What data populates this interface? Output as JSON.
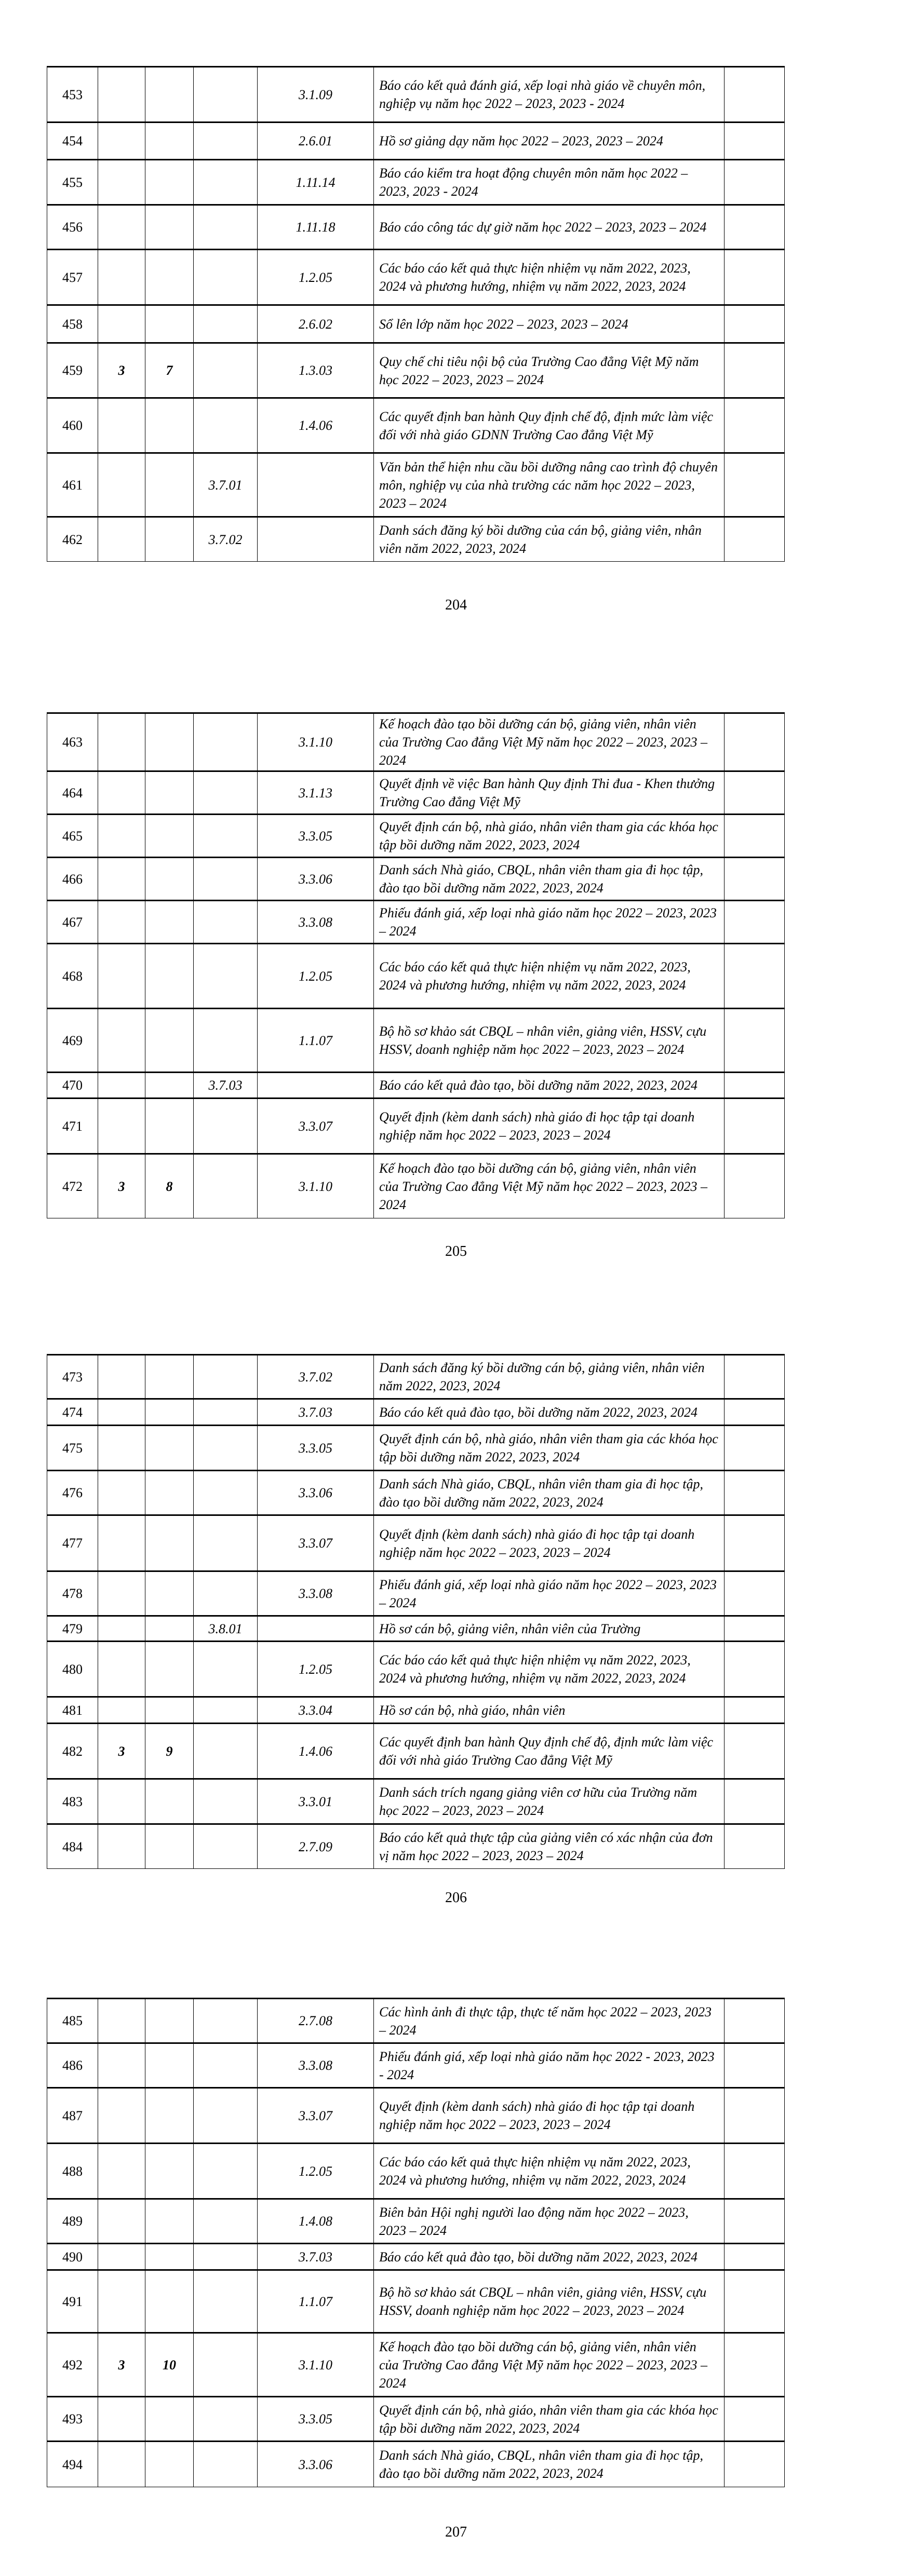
{
  "pages": [
    {
      "page_number": "204",
      "rows": [
        [
          "453",
          "",
          "",
          "",
          "3.1.09",
          "Báo cáo kết quả đánh giá, xếp loại nhà giáo về chuyên môn, nghiệp vụ năm học 2022 – 2023, 2023 - 2024"
        ],
        [
          "454",
          "",
          "",
          "",
          "2.6.01",
          "Hồ sơ giảng dạy năm học 2022 – 2023, 2023 – 2024"
        ],
        [
          "455",
          "",
          "",
          "",
          "1.11.14",
          "Báo cáo kiểm tra hoạt động chuyên môn năm học 2022 – 2023, 2023 - 2024"
        ],
        [
          "456",
          "",
          "",
          "",
          "1.11.18",
          "Báo cáo công tác dự giờ năm học 2022 – 2023, 2023 – 2024"
        ],
        [
          "457",
          "",
          "",
          "",
          "1.2.05",
          "Các báo cáo kết quả thực hiện nhiệm vụ năm 2022, 2023, 2024 và phương hướng, nhiệm vụ năm 2022, 2023, 2024"
        ],
        [
          "458",
          "",
          "",
          "",
          "2.6.02",
          "Sổ lên lớp năm học 2022 – 2023, 2023 – 2024"
        ],
        [
          "459",
          "3",
          "7",
          "",
          "1.3.03",
          "Quy chế chi tiêu nội bộ của Trường Cao đẳng Việt Mỹ năm học 2022 – 2023, 2023 – 2024"
        ],
        [
          "460",
          "",
          "",
          "",
          "1.4.06",
          "Các quyết định ban hành Quy định chế độ, định mức làm việc đối với nhà giáo GDNN Trường Cao đẳng Việt Mỹ"
        ],
        [
          "461",
          "",
          "",
          "3.7.01",
          "",
          "Văn bản thể hiện nhu cầu bồi dưỡng nâng cao trình độ chuyên môn, nghiệp vụ của nhà trường các năm học 2022 – 2023, 2023 – 2024"
        ],
        [
          "462",
          "",
          "",
          "3.7.02",
          "",
          "Danh sách đăng ký bồi dưỡng của cán bộ, giảng viên, nhân viên năm 2022, 2023, 2024"
        ]
      ]
    },
    {
      "page_number": "205",
      "rows": [
        [
          "463",
          "",
          "",
          "",
          "3.1.10",
          "Kế hoạch đào tạo bồi dưỡng cán bộ, giảng viên, nhân viên của Trường Cao đẳng Việt Mỹ năm học 2022 – 2023, 2023 – 2024"
        ],
        [
          "464",
          "",
          "",
          "",
          "3.1.13",
          "Quyết định về việc Ban hành Quy định Thi đua - Khen thưởng Trường Cao đẳng Việt Mỹ"
        ],
        [
          "465",
          "",
          "",
          "",
          "3.3.05",
          "Quyết định cán bộ, nhà giáo, nhân viên tham gia các khóa học tập bồi dưỡng năm 2022, 2023, 2024"
        ],
        [
          "466",
          "",
          "",
          "",
          "3.3.06",
          "Danh sách Nhà giáo, CBQL, nhân viên tham gia đi học tập, đào tạo bồi dưỡng năm 2022, 2023, 2024"
        ],
        [
          "467",
          "",
          "",
          "",
          "3.3.08",
          "Phiếu đánh giá, xếp loại nhà giáo năm học 2022 – 2023, 2023 – 2024"
        ],
        [
          "468",
          "",
          "",
          "",
          "1.2.05",
          "Các báo cáo kết quả thực hiện nhiệm vụ năm  2022, 2023, 2024 và phương hướng, nhiệm vụ năm 2022, 2023, 2024"
        ],
        [
          "469",
          "",
          "",
          "",
          "1.1.07",
          "Bộ hồ sơ khảo sát CBQL – nhân viên, giảng viên, HSSV, cựu HSSV, doanh nghiệp năm học 2022 – 2023, 2023 – 2024"
        ],
        [
          "470",
          "",
          "",
          "3.7.03",
          "",
          "Báo cáo kết quả đào tạo, bồi dưỡng năm 2022, 2023, 2024"
        ],
        [
          "471",
          "",
          "",
          "",
          "3.3.07",
          "Quyết định (kèm danh sách) nhà giáo đi học tập tại doanh nghiệp năm học 2022 – 2023, 2023 – 2024"
        ],
        [
          "472",
          "3",
          "8",
          "",
          "3.1.10",
          "Kế hoạch đào tạo bồi dưỡng cán bộ, giảng viên, nhân viên của Trường Cao đẳng Việt Mỹ năm học 2022 – 2023, 2023 – 2024"
        ]
      ]
    },
    {
      "page_number": "206",
      "rows": [
        [
          "473",
          "",
          "",
          "",
          "3.7.02",
          "Danh sách đăng ký bồi dưỡng cán bộ, giảng viên, nhân viên năm 2022, 2023, 2024"
        ],
        [
          "474",
          "",
          "",
          "",
          "3.7.03",
          "Báo cáo kết quả đào tạo, bồi dưỡng năm 2022, 2023, 2024"
        ],
        [
          "475",
          "",
          "",
          "",
          "3.3.05",
          "Quyết định cán bộ, nhà giáo, nhân viên tham gia các khóa học tập bồi dưỡng năm 2022, 2023, 2024"
        ],
        [
          "476",
          "",
          "",
          "",
          "3.3.06",
          "Danh sách Nhà giáo, CBQL, nhân viên tham gia đi học tập, đào tạo bồi dưỡng năm 2022, 2023, 2024"
        ],
        [
          "477",
          "",
          "",
          "",
          "3.3.07",
          "Quyết định (kèm danh sách) nhà giáo đi học tập tại doanh nghiệp năm học 2022 – 2023, 2023 – 2024"
        ],
        [
          "478",
          "",
          "",
          "",
          "3.3.08",
          "Phiếu đánh giá, xếp loại nhà giáo năm học 2022 – 2023, 2023 – 2024"
        ],
        [
          "479",
          "",
          "",
          "3.8.01",
          "",
          "Hồ sơ cán bộ, giảng viên, nhân viên của Trường"
        ],
        [
          "480",
          "",
          "",
          "",
          "1.2.05",
          "Các báo cáo kết quả thực hiện nhiệm vụ năm 2022, 2023, 2024 và phương hướng, nhiệm vụ năm 2022, 2023, 2024"
        ],
        [
          "481",
          "",
          "",
          "",
          "3.3.04",
          "Hồ sơ cán bộ, nhà giáo, nhân viên"
        ],
        [
          "482",
          "3",
          "9",
          "",
          "1.4.06",
          "Các quyết định ban hành Quy định chế độ, định mức làm việc đối với nhà giáo Trường Cao đẳng Việt Mỹ"
        ],
        [
          "483",
          "",
          "",
          "",
          "3.3.01",
          "Danh sách trích ngang giảng viên cơ hữu của Trường năm học 2022 – 2023, 2023 – 2024"
        ],
        [
          "484",
          "",
          "",
          "",
          "2.7.09",
          "Báo cáo kết quả thực tập của giảng viên có xác nhận của đơn vị năm học 2022 – 2023, 2023 – 2024"
        ]
      ]
    },
    {
      "page_number": "207",
      "rows": [
        [
          "485",
          "",
          "",
          "",
          "2.7.08",
          "Các hình ảnh đi thực tập, thực tế năm học 2022 – 2023, 2023 – 2024"
        ],
        [
          "486",
          "",
          "",
          "",
          "3.3.08",
          "Phiếu đánh giá, xếp loại nhà giáo năm học 2022 - 2023, 2023 - 2024"
        ],
        [
          "487",
          "",
          "",
          "",
          "3.3.07",
          "Quyết định (kèm danh sách) nhà giáo đi học tập tại doanh nghiệp năm học 2022 – 2023, 2023 – 2024"
        ],
        [
          "488",
          "",
          "",
          "",
          "1.2.05",
          "Các báo cáo kết quả thực hiện nhiệm vụ năm 2022, 2023, 2024 và phương hướng, nhiệm vụ năm 2022, 2023, 2024"
        ],
        [
          "489",
          "",
          "",
          "",
          "1.4.08",
          "Biên bản Hội nghị người lao động năm học 2022 – 2023, 2023 – 2024"
        ],
        [
          "490",
          "",
          "",
          "",
          "3.7.03",
          "Báo cáo kết quả đào tạo, bồi dưỡng năm 2022, 2023, 2024"
        ],
        [
          "491",
          "",
          "",
          "",
          "1.1.07",
          "Bộ hồ sơ khảo sát CBQL – nhân viên, giảng viên, HSSV, cựu HSSV, doanh nghiệp năm học 2022 – 2023, 2023 – 2024"
        ],
        [
          "492",
          "3",
          "10",
          "",
          "3.1.10",
          "Kế hoạch đào tạo bồi dưỡng cán bộ, giảng viên, nhân viên của Trường Cao đẳng Việt Mỹ năm học 2022 – 2023, 2023 – 2024"
        ],
        [
          "493",
          "",
          "",
          "",
          "3.3.05",
          "Quyết định cán bộ, nhà giáo, nhân viên tham gia các khóa học tập bồi dưỡng năm 2022, 2023, 2024"
        ],
        [
          "494",
          "",
          "",
          "",
          "3.3.06",
          "Danh sách Nhà giáo, CBQL, nhân viên tham gia đi học tập, đào tạo bồi dưỡng năm 2022, 2023, 2024"
        ]
      ]
    }
  ]
}
